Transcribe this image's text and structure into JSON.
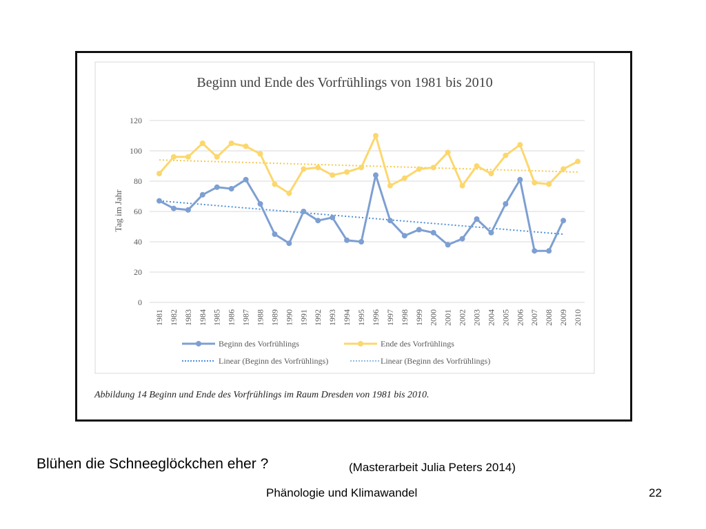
{
  "slide": {
    "question": "Blühen die Schneeglöckchen eher ?",
    "source": "(Masterarbeit Julia Peters 2014)",
    "footer_title": "Phänologie und Klimawandel",
    "page_number": "22"
  },
  "figure": {
    "caption": "Abbildung 14 Beginn und Ende des Vorfrühlings im Raum Dresden von 1981 bis 2010."
  },
  "colors": {
    "beginn": "#7d9fd2",
    "ende": "#fcd76d",
    "trend_beginn": "#4c8ed6",
    "trend_ende": "#f5c84a",
    "grid": "#d9d9d9",
    "text": "#595959",
    "title": "#404040"
  },
  "chart_data": {
    "type": "line",
    "title": "Beginn und Ende des Vorfrühlings von 1981 bis 2010",
    "xlabel": "",
    "ylabel": "Tag im Jahr",
    "ylim": [
      0,
      120
    ],
    "yticks": [
      0,
      20,
      40,
      60,
      80,
      100,
      120
    ],
    "grid": true,
    "legend_position": "bottom",
    "categories": [
      "1981",
      "1982",
      "1983",
      "1984",
      "1985",
      "1986",
      "1987",
      "1988",
      "1989",
      "1990",
      "1991",
      "1992",
      "1993",
      "1994",
      "1995",
      "1996",
      "1997",
      "1998",
      "1999",
      "2000",
      "2001",
      "2002",
      "2003",
      "2004",
      "2005",
      "2006",
      "2007",
      "2008",
      "2009",
      "2010"
    ],
    "series": [
      {
        "name": "Beginn des Vorfrühlings",
        "values": [
          67,
          62,
          61,
          71,
          76,
          75,
          81,
          65,
          45,
          39,
          60,
          54,
          56,
          41,
          40,
          84,
          54,
          44,
          48,
          46,
          38,
          42,
          55,
          46,
          65,
          81,
          34,
          34,
          54,
          null
        ]
      },
      {
        "name": "Ende des Vorfrühlings",
        "values": [
          85,
          96,
          96,
          105,
          96,
          105,
          103,
          98,
          78,
          72,
          88,
          89,
          84,
          86,
          89,
          110,
          77,
          82,
          88,
          89,
          99,
          77,
          90,
          85,
          97,
          104,
          79,
          78,
          88,
          93
        ]
      }
    ],
    "trendlines": [
      {
        "name": "Linear (Beginn des Vorfrühlings)",
        "of": "Beginn des Vorfrühlings",
        "start": 67,
        "end": 45
      },
      {
        "name": "Linear (Beginn des Vorfrühlings)",
        "of": "Ende des Vorfrühlings",
        "start": 94,
        "end": 86
      }
    ]
  }
}
